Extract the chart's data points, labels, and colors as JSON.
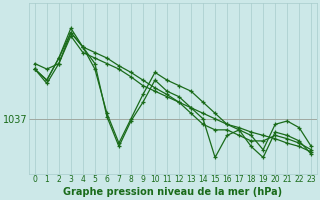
{
  "xlabel": "Graphe pression niveau de la mer (hPa)",
  "background_color": "#cce8e8",
  "plot_bg_color": "#cce8e8",
  "grid_color": "#a8cccc",
  "line_color": "#1a6b1a",
  "hline_value": 1037,
  "hline_color": "#a0a8a0",
  "xlim": [
    -0.5,
    23.5
  ],
  "ylim": [
    1032.0,
    1047.5
  ],
  "xticks": [
    0,
    1,
    2,
    3,
    4,
    5,
    6,
    7,
    8,
    9,
    10,
    11,
    12,
    13,
    14,
    15,
    16,
    17,
    18,
    19,
    20,
    21,
    22,
    23
  ],
  "ytick_val": 1037,
  "series": [
    [
      1041.5,
      1040.5,
      1042.5,
      1044.8,
      1043.5,
      1043.0,
      1042.5,
      1041.8,
      1041.2,
      1040.5,
      1039.8,
      1039.2,
      1038.5,
      1038.0,
      1037.5,
      1037.0,
      1036.5,
      1036.2,
      1035.8,
      1035.5,
      1035.2,
      1034.8,
      1034.5,
      1034.0
    ],
    [
      1042.0,
      1041.5,
      1042.0,
      1044.5,
      1043.0,
      1042.5,
      1042.0,
      1041.5,
      1040.8,
      1040.0,
      1039.5,
      1039.0,
      1038.5,
      1037.5,
      1036.5,
      1036.0,
      1036.0,
      1035.5,
      1035.0,
      1035.0,
      1035.5,
      1035.2,
      1034.8,
      1034.2
    ],
    [
      1041.5,
      1040.5,
      1042.5,
      1045.2,
      1043.5,
      1041.5,
      1037.5,
      1034.8,
      1037.0,
      1039.2,
      1041.2,
      1040.5,
      1040.0,
      1039.5,
      1038.5,
      1037.5,
      1036.5,
      1036.0,
      1035.5,
      1034.2,
      1036.5,
      1036.8,
      1036.2,
      1034.5
    ],
    [
      1041.5,
      1040.2,
      1042.0,
      1044.8,
      1043.5,
      1042.0,
      1037.2,
      1034.5,
      1036.8,
      1038.5,
      1040.5,
      1039.5,
      1039.0,
      1038.0,
      1037.0,
      1033.5,
      1035.5,
      1036.0,
      1034.5,
      1033.5,
      1035.8,
      1035.5,
      1035.0,
      1033.8
    ]
  ],
  "marker_size": 3.5,
  "linewidth": 0.9,
  "xlabel_fontsize": 7,
  "xlabel_bold": true,
  "ytick_fontsize": 7,
  "xtick_fontsize": 5.5
}
